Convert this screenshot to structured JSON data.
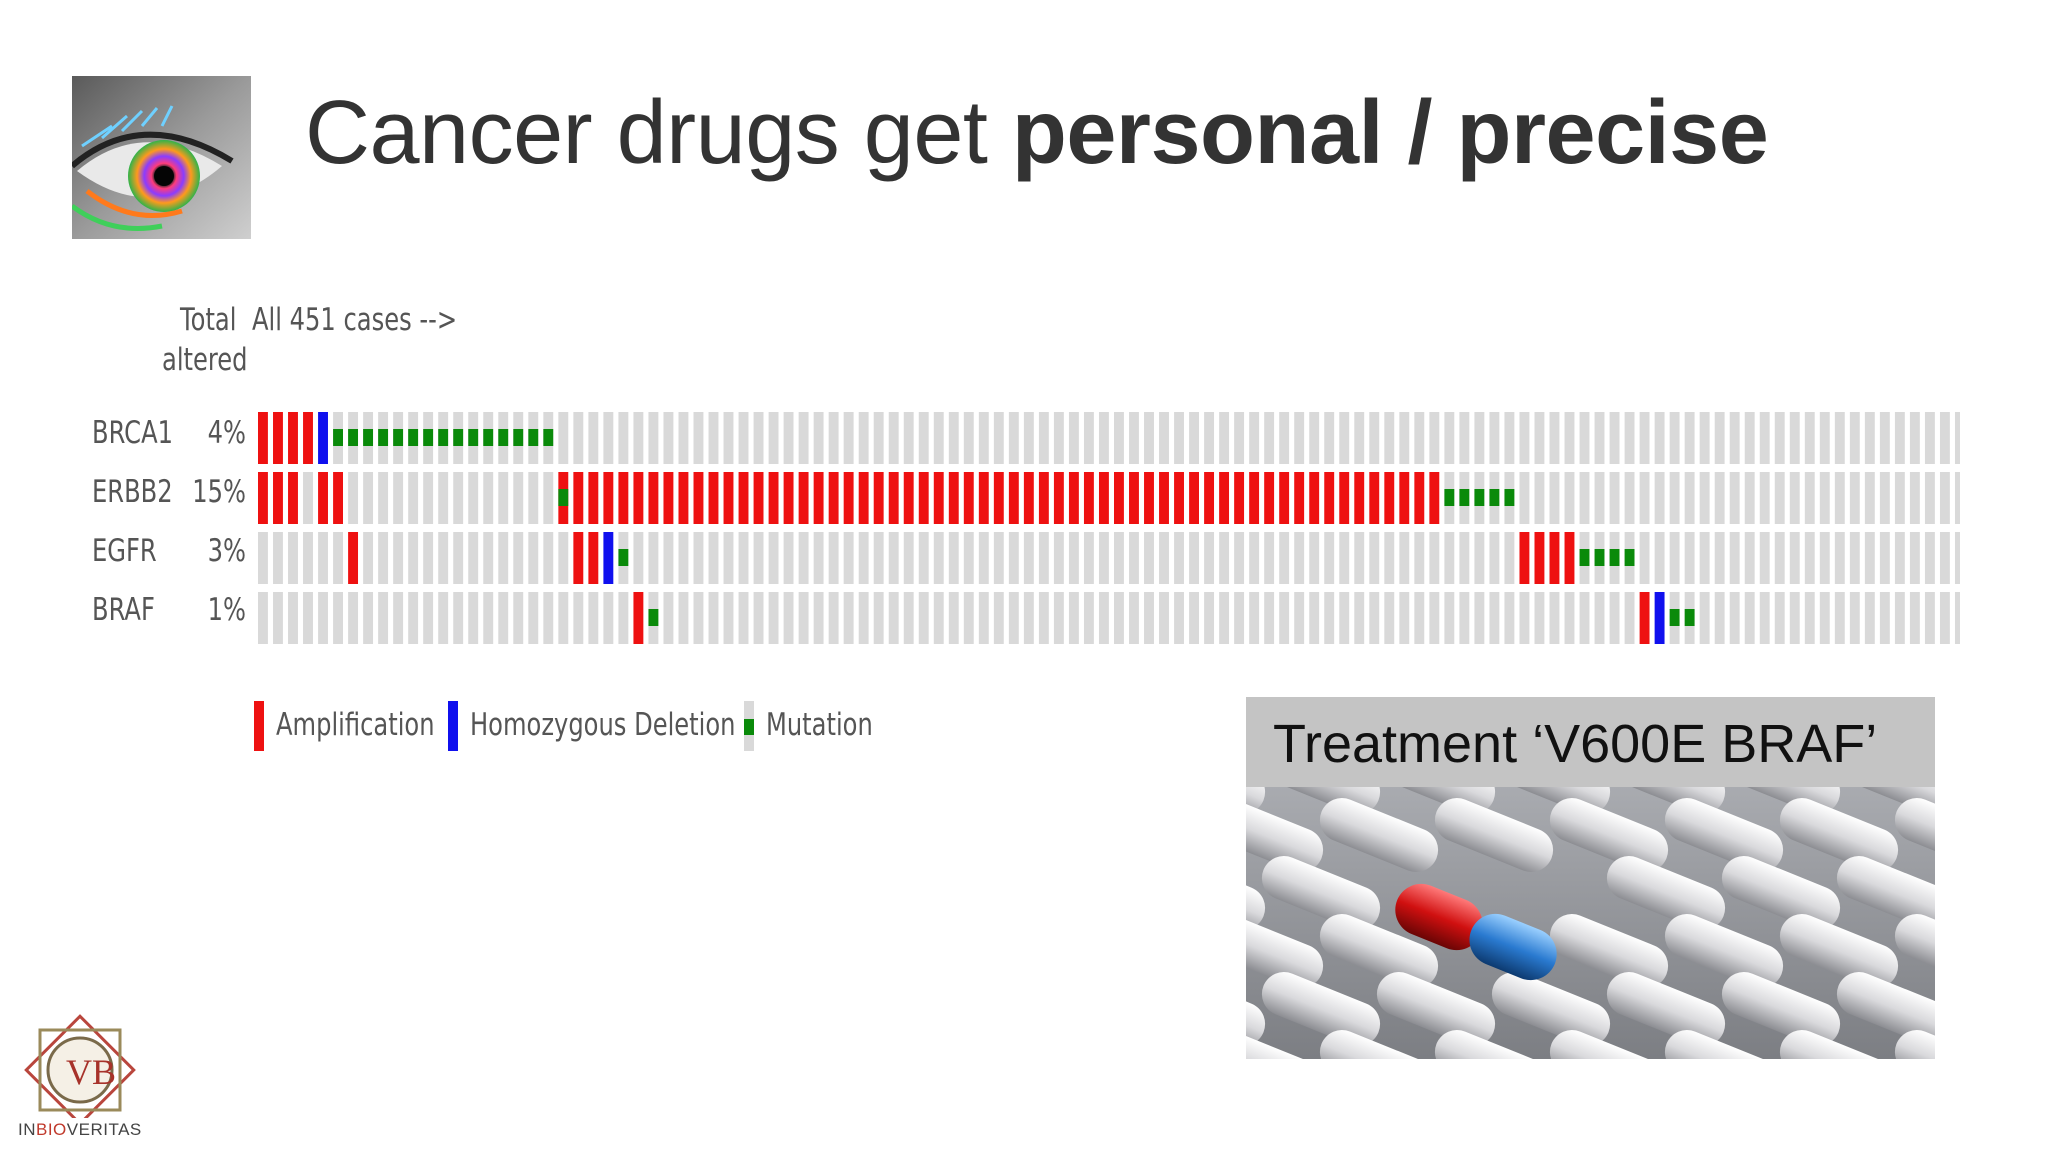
{
  "title": {
    "regular": "Cancer drugs get ",
    "bold": "personal / precise"
  },
  "oncoprint": {
    "header_total": "Total",
    "header_altered": "altered",
    "header_cases": "All 451 cases -->"
  },
  "chart_data": {
    "type": "oncoprint",
    "total_cases": 451,
    "columns_shown": 114,
    "genes": [
      {
        "name": "BRCA1",
        "pct": "4%",
        "alterations": [
          {
            "col": 0,
            "type": "amp"
          },
          {
            "col": 1,
            "type": "amp"
          },
          {
            "col": 2,
            "type": "amp"
          },
          {
            "col": 3,
            "type": "amp"
          },
          {
            "col": 4,
            "type": "del"
          },
          {
            "col": 5,
            "type": "mut"
          },
          {
            "col": 6,
            "type": "mut"
          },
          {
            "col": 7,
            "type": "mut"
          },
          {
            "col": 8,
            "type": "mut"
          },
          {
            "col": 9,
            "type": "mut"
          },
          {
            "col": 10,
            "type": "mut"
          },
          {
            "col": 11,
            "type": "mut"
          },
          {
            "col": 12,
            "type": "mut"
          },
          {
            "col": 13,
            "type": "mut"
          },
          {
            "col": 14,
            "type": "mut"
          },
          {
            "col": 15,
            "type": "mut"
          },
          {
            "col": 16,
            "type": "mut"
          },
          {
            "col": 17,
            "type": "mut"
          },
          {
            "col": 18,
            "type": "mut"
          },
          {
            "col": 19,
            "type": "mut"
          }
        ]
      },
      {
        "name": "ERBB2",
        "pct": "15%",
        "amp_ranges": [
          [
            0,
            2
          ],
          [
            4,
            5
          ],
          [
            20,
            78
          ]
        ],
        "mut_cols": [
          20,
          79,
          80,
          81,
          82,
          83
        ]
      },
      {
        "name": "EGFR",
        "pct": "3%",
        "alterations": [
          {
            "col": 6,
            "type": "amp"
          },
          {
            "col": 21,
            "type": "amp"
          },
          {
            "col": 22,
            "type": "amp"
          },
          {
            "col": 23,
            "type": "del"
          },
          {
            "col": 24,
            "type": "mut"
          },
          {
            "col": 84,
            "type": "amp"
          },
          {
            "col": 85,
            "type": "amp"
          },
          {
            "col": 86,
            "type": "amp"
          },
          {
            "col": 87,
            "type": "amp"
          },
          {
            "col": 88,
            "type": "mut"
          },
          {
            "col": 89,
            "type": "mut"
          },
          {
            "col": 90,
            "type": "mut"
          },
          {
            "col": 91,
            "type": "mut"
          }
        ]
      },
      {
        "name": "BRAF",
        "pct": "1%",
        "alterations": [
          {
            "col": 25,
            "type": "amp"
          },
          {
            "col": 26,
            "type": "mut"
          },
          {
            "col": 92,
            "type": "amp"
          },
          {
            "col": 93,
            "type": "del"
          },
          {
            "col": 94,
            "type": "mut"
          },
          {
            "col": 95,
            "type": "mut"
          }
        ]
      }
    ],
    "legend": [
      {
        "label": "Amplification",
        "color": "#ee1111"
      },
      {
        "label": "Homozygous Deletion",
        "color": "#1010ee"
      },
      {
        "label": "Mutation",
        "color": "#0a8a0a"
      }
    ],
    "colors": {
      "amp": "#ee1111",
      "del": "#1010ee",
      "mut": "#0a8a0a",
      "none": "#d9d9d9"
    }
  },
  "treatment": {
    "label": "Treatment ‘V600E BRAF’"
  },
  "logo": {
    "text_pre": "IN",
    "text_bio": "BIO",
    "text_post": "VERITAS",
    "monogram": "VB"
  }
}
